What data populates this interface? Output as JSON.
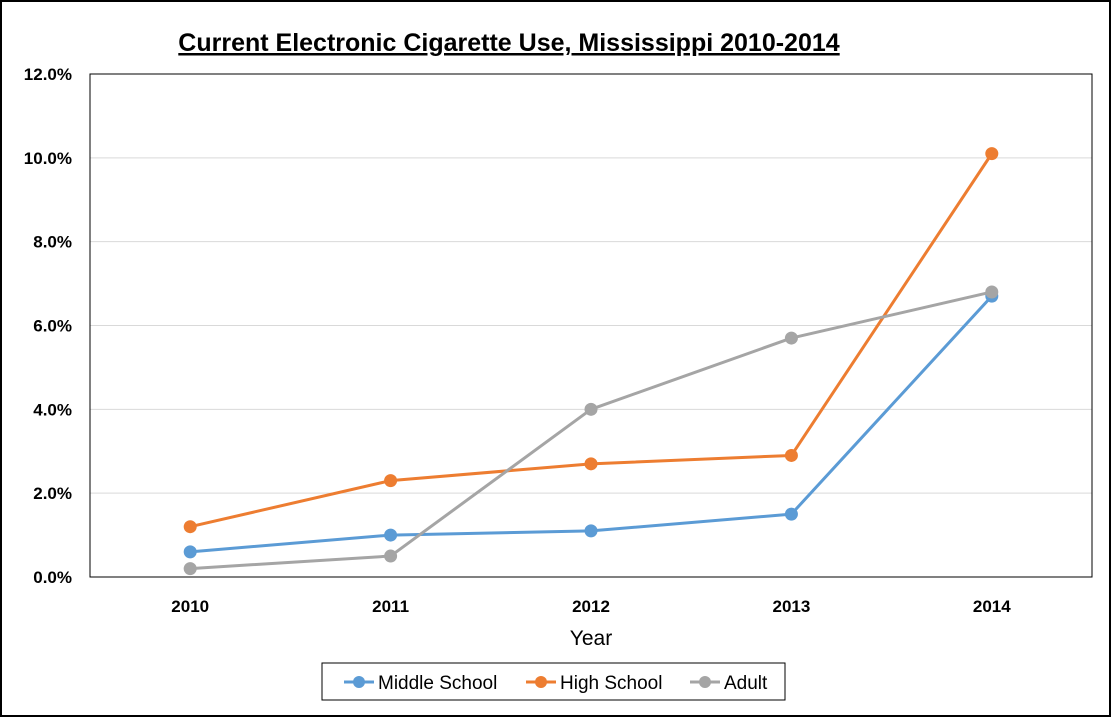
{
  "chart_data": {
    "type": "line",
    "title": "Current Electronic Cigarette Use, Mississippi 2010-2014",
    "xlabel": "Year",
    "ylabel": "",
    "categories": [
      "2010",
      "2011",
      "2012",
      "2013",
      "2014"
    ],
    "ylim": [
      0,
      12
    ],
    "yticks": [
      "0.0%",
      "2.0%",
      "4.0%",
      "6.0%",
      "8.0%",
      "10.0%",
      "12.0%"
    ],
    "grid": "horizontal",
    "legend_position": "bottom",
    "series": [
      {
        "name": "Middle School",
        "color": "#5B9BD5",
        "values": [
          0.6,
          1.0,
          1.1,
          1.5,
          6.7
        ]
      },
      {
        "name": "High School",
        "color": "#ED7D31",
        "values": [
          1.2,
          2.3,
          2.7,
          2.9,
          10.1
        ]
      },
      {
        "name": "Adult",
        "color": "#A5A5A5",
        "values": [
          0.2,
          0.5,
          4.0,
          5.7,
          6.8
        ]
      }
    ]
  }
}
